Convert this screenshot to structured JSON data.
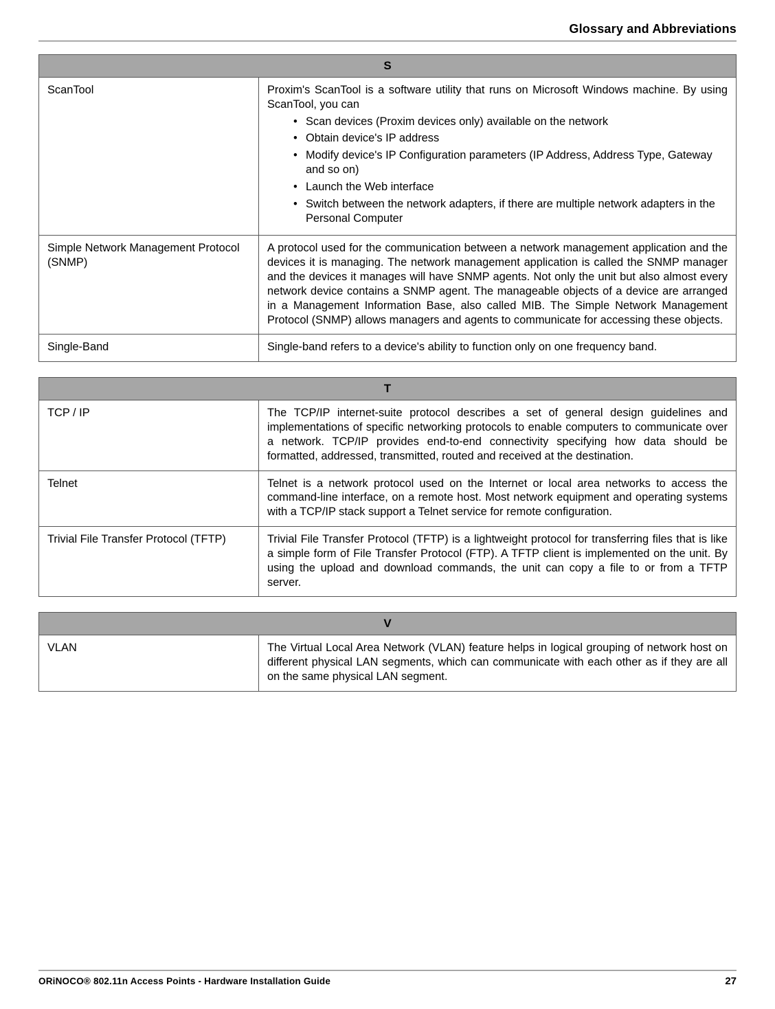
{
  "header": {
    "title": "Glossary and Abbreviations"
  },
  "sections": [
    {
      "letter": "S",
      "rows": [
        {
          "term": "ScanTool",
          "intro": "Proxim's ScanTool is a software utility that runs on Microsoft Windows machine. By using ScanTool, you can",
          "bullets": [
            "Scan devices (Proxim devices only) available on the network",
            "Obtain device's IP address",
            "Modify device's IP Configuration parameters (IP Address, Address Type, Gateway and so on)",
            "Launch the Web interface",
            "Switch between the network adapters, if there are multiple network adapters in the Personal Computer"
          ]
        },
        {
          "term": "Simple Network Management Protocol (SNMP)",
          "def": "A protocol used for the communication between a network management application and the devices it is managing. The network management application is called the SNMP manager and the devices it manages will have SNMP agents. Not only the unit but also almost every network device contains a SNMP agent. The manageable objects of a device are arranged in a Management Information Base, also called MIB. The Simple Network Management Protocol (SNMP) allows managers and agents to communicate for accessing these objects."
        },
        {
          "term": "Single-Band",
          "def": "Single-band refers to a device's ability to function only on one frequency band."
        }
      ]
    },
    {
      "letter": "T",
      "rows": [
        {
          "term": "TCP / IP",
          "def": "The TCP/IP internet-suite protocol describes a set of general design guidelines and implementations of specific networking protocols to enable computers to communicate over a network. TCP/IP provides end-to-end connectivity specifying how data should be formatted, addressed, transmitted, routed and received at the destination."
        },
        {
          "term": "Telnet",
          "def": "Telnet is a network protocol used on the Internet or local area networks to access the command-line interface, on a remote host. Most network equipment and operating systems with a TCP/IP stack support a Telnet service for remote configuration."
        },
        {
          "term": "Trivial File Transfer Protocol (TFTP)",
          "def": "Trivial File Transfer Protocol (TFTP) is a lightweight protocol for transferring files that is like a simple form of File Transfer Protocol (FTP). A TFTP client is implemented on the unit. By using the upload and download commands, the unit can copy a file to or from a TFTP server."
        }
      ]
    },
    {
      "letter": "V",
      "rows": [
        {
          "term": "VLAN",
          "def": "The Virtual Local Area Network (VLAN) feature helps in logical grouping of network host on different physical LAN segments, which can communicate with each other as if they are all on the same physical LAN segment."
        }
      ]
    }
  ],
  "footer": {
    "left": "ORiNOCO® 802.11n Access Points - Hardware Installation Guide",
    "page": "27"
  }
}
